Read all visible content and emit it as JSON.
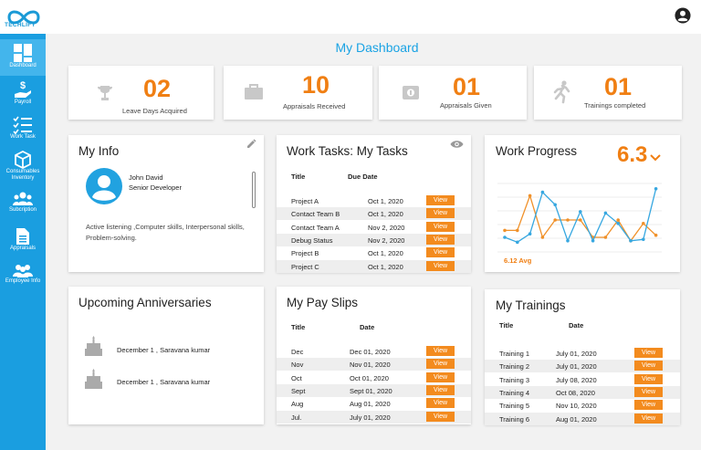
{
  "brand": {
    "name": "TECHLIFY",
    "color": "#1a9ad6"
  },
  "header": {
    "title": "My Dashboard",
    "user_icon": "account-circle-icon"
  },
  "sidebar": {
    "items": [
      {
        "label": "Dashboard",
        "icon": "dashboard-grid-icon",
        "active": true
      },
      {
        "label": "Payroll",
        "icon": "hand-dollar-icon"
      },
      {
        "label": "Work Task",
        "icon": "checklist-icon"
      },
      {
        "label": "Consumables Inventory",
        "icon": "box-icon"
      },
      {
        "label": "Subcription",
        "icon": "users-icon"
      },
      {
        "label": "Appraisals",
        "icon": "document-icon"
      },
      {
        "label": "Employee Info",
        "icon": "group-icon"
      }
    ]
  },
  "stats": [
    {
      "value": "02",
      "label": "Leave Days Acquired",
      "icon": "trophy-icon"
    },
    {
      "value": "10",
      "label": "Appraisals Received",
      "icon": "briefcase-icon"
    },
    {
      "value": "01",
      "label": "Appraisals Given",
      "icon": "money-icon"
    },
    {
      "value": "01",
      "label": "Trainings completed",
      "icon": "running-person-icon"
    }
  ],
  "my_info": {
    "title": "My Info",
    "name": "John David",
    "role": "Senior Developer",
    "skills": "Active listening ,Computer skills, Interpersonal skills, Problem-solving."
  },
  "work_tasks": {
    "title": "Work Tasks: My Tasks",
    "columns": [
      "Title",
      "Due Date"
    ],
    "view_label": "View",
    "rows": [
      {
        "title": "Project A",
        "date": "Oct 1, 2020"
      },
      {
        "title": "Contact Team B",
        "date": "Oct 1, 2020"
      },
      {
        "title": "Contact Team A",
        "date": "Nov 2, 2020"
      },
      {
        "title": "Debug Status",
        "date": "Nov 2, 2020"
      },
      {
        "title": "Project B",
        "date": "Oct 1, 2020"
      },
      {
        "title": "Project C",
        "date": "Oct 1, 2020"
      }
    ]
  },
  "work_progress": {
    "title": "Work Progress",
    "value": "6.3",
    "avg_label": "6.12 Avg",
    "colors": {
      "blue": "#36a7e0",
      "orange": "#f0912a"
    }
  },
  "anniversaries": {
    "title": "Upcoming Anniversaries",
    "items": [
      {
        "text": "December 1 , Saravana kumar"
      },
      {
        "text": "December 1 , Saravana kumar"
      }
    ]
  },
  "pay_slips": {
    "title": "My Pay Slips",
    "columns": [
      "Title",
      "Date"
    ],
    "view_label": "View",
    "rows": [
      {
        "title": "Dec",
        "date": "Dec 01, 2020"
      },
      {
        "title": "Nov",
        "date": "Nov 01, 2020"
      },
      {
        "title": "Oct",
        "date": "Oct 01, 2020"
      },
      {
        "title": "Sept",
        "date": "Sept 01, 2020"
      },
      {
        "title": "Aug",
        "date": "Aug 01, 2020"
      },
      {
        "title": "Jul.",
        "date": "July 01, 2020"
      }
    ]
  },
  "trainings": {
    "title": "My Trainings",
    "columns": [
      "Title",
      "Date"
    ],
    "view_label": "View",
    "rows": [
      {
        "title": "Training 1",
        "date": "July 01, 2020"
      },
      {
        "title": "Training 2",
        "date": "July 01, 2020"
      },
      {
        "title": "Training 3",
        "date": "July 08, 2020"
      },
      {
        "title": "Training 4",
        "date": "Oct 08, 2020"
      },
      {
        "title": "Training 5",
        "date": "Nov 10, 2020"
      },
      {
        "title": "Training 6",
        "date": "Aug 01, 2020"
      }
    ]
  }
}
